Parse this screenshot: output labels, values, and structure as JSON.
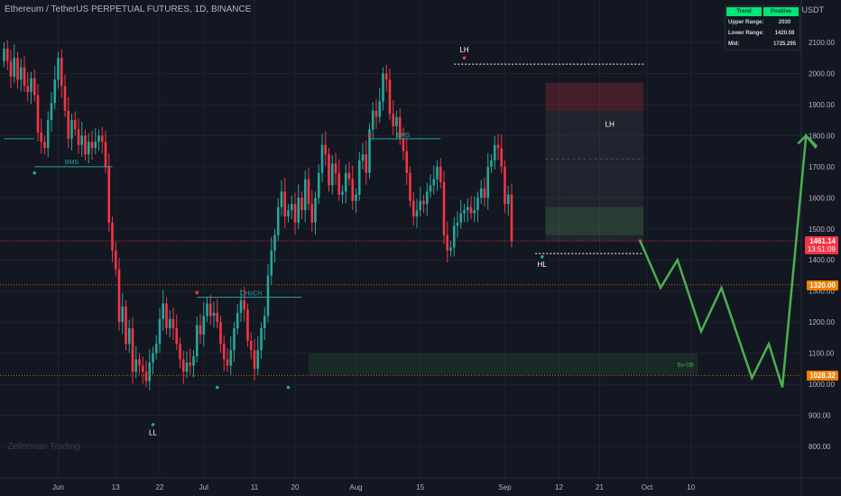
{
  "header": {
    "title": "Ethereum / TetherUS PERPETUAL FUTURES, 1D, BINANCE",
    "currency": "USDT",
    "watermark": "Zellerman Trading"
  },
  "info_table": {
    "head": [
      "Trend",
      "Positive"
    ],
    "rows": [
      {
        "label": "Upper Range:",
        "value": "2030"
      },
      {
        "label": "Lower Range:",
        "value": "1420.59"
      },
      {
        "label": "Mid:",
        "value": "1725.295"
      }
    ]
  },
  "price_tags": [
    {
      "price": 1461.14,
      "label": "1461.14",
      "sub": "13:51:09",
      "color": "#f23645"
    },
    {
      "price": 1320,
      "label": "1320.00",
      "color": "#f57c00"
    },
    {
      "price": 1028.32,
      "label": "1028.32",
      "color": "#f57c00"
    }
  ],
  "colors": {
    "up": "#26a69a",
    "down": "#f23645",
    "grid": "#1e222d",
    "axis_text": "#b2b5be",
    "projection": "#4caf50",
    "label_line": "#26a69a",
    "level": "#f57c00"
  },
  "chart_data": {
    "type": "candlestick",
    "y_axis": {
      "min": 760,
      "max": 2170,
      "ticks": [
        800,
        900,
        1000,
        1100,
        1200,
        1300,
        1400,
        1500,
        1600,
        1700,
        1800,
        1900,
        2000,
        2100
      ]
    },
    "x_axis": {
      "tick_labels": [
        "Jun",
        "13",
        "22",
        "Jul",
        "11",
        "20",
        "Aug",
        "15",
        "Sep",
        "12",
        "21",
        "Oct",
        "10"
      ],
      "tick_index": [
        16,
        33,
        46,
        59,
        74,
        86,
        104,
        123,
        148,
        164,
        176,
        190,
        203
      ]
    },
    "candles_close": [
      2080,
      2040,
      1990,
      2050,
      1980,
      2020,
      1960,
      1940,
      1985,
      1930,
      1810,
      1780,
      1760,
      1850,
      1905,
      1980,
      2050,
      1960,
      1880,
      1790,
      1850,
      1820,
      1770,
      1800,
      1740,
      1780,
      1760,
      1780,
      1800,
      1780,
      1700,
      1520,
      1430,
      1370,
      1200,
      1250,
      1130,
      1180,
      1040,
      1080,
      1060,
      1040,
      1010,
      1070,
      1100,
      1130,
      1210,
      1260,
      1180,
      1210,
      1180,
      1130,
      1080,
      1040,
      1070,
      1060,
      1090,
      1190,
      1160,
      1220,
      1260,
      1220,
      1230,
      1200,
      1130,
      1080,
      1060,
      1110,
      1180,
      1230,
      1270,
      1240,
      1140,
      1110,
      1050,
      1110,
      1180,
      1220,
      1350,
      1430,
      1480,
      1570,
      1620,
      1540,
      1560,
      1580,
      1520,
      1600,
      1560,
      1660,
      1580,
      1520,
      1600,
      1680,
      1770,
      1740,
      1640,
      1710,
      1680,
      1610,
      1620,
      1680,
      1660,
      1590,
      1610,
      1720,
      1740,
      1680,
      1820,
      1880,
      1860,
      1910,
      2000,
      1980,
      1870,
      1830,
      1860,
      1790,
      1750,
      1680,
      1590,
      1540,
      1560,
      1590,
      1580,
      1620,
      1640,
      1660,
      1700,
      1650,
      1480,
      1430,
      1440,
      1510,
      1520,
      1550,
      1560,
      1570,
      1550,
      1560,
      1600,
      1630,
      1600,
      1700,
      1720,
      1770,
      1760,
      1700,
      1580,
      1610,
      1460
    ],
    "series_labels": [
      {
        "text": "BMS"
      },
      {
        "text": "BMS"
      },
      {
        "text": "CHoCH"
      },
      {
        "text": "Bu-OB"
      },
      {
        "text": "LL"
      },
      {
        "text": "HL"
      },
      {
        "text": "LH"
      },
      {
        "text": "LH"
      }
    ],
    "projection_points": [
      [
        1461,
        0
      ],
      [
        1310,
        6
      ],
      [
        1400,
        11
      ],
      [
        1170,
        18
      ],
      [
        1310,
        24
      ],
      [
        1020,
        33
      ],
      [
        1130,
        38
      ],
      [
        990,
        42
      ],
      [
        1800,
        49
      ],
      [
        1760,
        52
      ]
    ],
    "ranges": {
      "upper": 2030,
      "lower": 1420.59,
      "mid": 1725.295
    }
  }
}
